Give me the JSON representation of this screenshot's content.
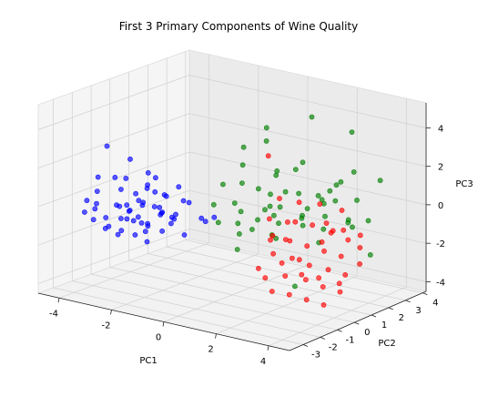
{
  "chart_data": {
    "type": "scatter3d",
    "title": "First 3 Primary Components of Wine Quality",
    "xlabel": "PC1",
    "ylabel": "PC2",
    "zlabel": "PC3",
    "xlim": [
      -4.8,
      4.8
    ],
    "ylim": [
      -3.8,
      4.2
    ],
    "zlim": [
      -4.5,
      5.3
    ],
    "xticks": [
      "-4",
      "-2",
      "0",
      "2",
      "4"
    ],
    "yticks": [
      "-3",
      "-2",
      "-1",
      "0",
      "1",
      "2",
      "3",
      "4"
    ],
    "zticks": [
      "-4",
      "-2",
      "0",
      "2",
      "4"
    ],
    "grid": true,
    "series": [
      {
        "color": "#0000ff",
        "points": [
          [
            -3.6,
            -1.8,
            2.8
          ],
          [
            -3.4,
            -2.6,
            0.8
          ],
          [
            -3.0,
            -2.2,
            1.5
          ],
          [
            -2.8,
            -2.4,
            0.2
          ],
          [
            -3.2,
            -1.6,
            0.6
          ],
          [
            -3.8,
            -2.0,
            1.2
          ],
          [
            -2.6,
            -2.0,
            -0.2
          ],
          [
            -2.4,
            -2.8,
            0.4
          ],
          [
            -2.2,
            -2.2,
            0.9
          ],
          [
            -2.0,
            -2.6,
            -0.3
          ],
          [
            -1.8,
            -2.4,
            0.5
          ],
          [
            -1.6,
            -2.0,
            1.1
          ],
          [
            -1.4,
            -2.8,
            -0.6
          ],
          [
            -1.2,
            -2.2,
            0.2
          ],
          [
            -1.0,
            -2.6,
            0.7
          ],
          [
            -3.0,
            -1.4,
            -0.5
          ],
          [
            -2.8,
            -1.2,
            0.0
          ],
          [
            -2.6,
            -1.0,
            0.8
          ],
          [
            -2.4,
            -1.6,
            -0.9
          ],
          [
            -2.2,
            -1.8,
            0.3
          ],
          [
            -2.0,
            -1.4,
            1.5
          ],
          [
            -1.8,
            -1.2,
            0.6
          ],
          [
            -1.6,
            -1.6,
            -0.1
          ],
          [
            -1.4,
            -1.4,
            -0.7
          ],
          [
            -1.2,
            -1.0,
            0.4
          ],
          [
            -3.4,
            -2.8,
            -0.6
          ],
          [
            -3.2,
            -3.0,
            0.1
          ],
          [
            -3.0,
            -3.2,
            0.5
          ],
          [
            -2.8,
            -3.0,
            -0.8
          ],
          [
            -2.6,
            -2.6,
            -1.2
          ],
          [
            -2.4,
            -2.4,
            -0.4
          ],
          [
            -2.2,
            -3.0,
            -0.1
          ],
          [
            -2.0,
            -1.8,
            1.9
          ],
          [
            -1.8,
            -2.8,
            -0.9
          ],
          [
            -1.6,
            -2.4,
            -0.4
          ],
          [
            -1.4,
            -3.2,
            0.3
          ],
          [
            -1.2,
            -3.0,
            -1.0
          ],
          [
            -1.0,
            -1.8,
            -0.2
          ],
          [
            -0.8,
            -2.2,
            0.1
          ],
          [
            -0.6,
            -1.8,
            -0.9
          ],
          [
            -3.6,
            -3.0,
            -0.2
          ],
          [
            -3.8,
            -2.6,
            0.2
          ],
          [
            -2.9,
            -2.0,
            -1.3
          ],
          [
            -2.5,
            -3.4,
            0.0
          ],
          [
            -2.1,
            -1.0,
            -0.6
          ],
          [
            -1.7,
            -3.4,
            0.9
          ],
          [
            -1.3,
            -1.8,
            0.9
          ],
          [
            -0.9,
            -2.6,
            -0.5
          ],
          [
            -1.1,
            -1.4,
            1.3
          ],
          [
            -0.5,
            -1.0,
            -0.3
          ],
          [
            -0.2,
            -1.2,
            -0.3
          ],
          [
            0.0,
            -1.0,
            -0.1
          ],
          [
            -3.3,
            -1.2,
            1.0
          ],
          [
            -2.7,
            -1.8,
            2.4
          ],
          [
            -1.9,
            -1.6,
            0.1
          ],
          [
            -1.5,
            -1.0,
            -0.4
          ],
          [
            -2.3,
            -1.4,
            -1.1
          ],
          [
            -3.1,
            -2.4,
            -1.0
          ],
          [
            -0.7,
            -1.4,
            0.6
          ],
          [
            -1.9,
            -2.0,
            1.2
          ]
        ]
      },
      {
        "color": "#008000",
        "points": [
          [
            1.0,
            0.5,
            4.3
          ],
          [
            0.8,
            -0.5,
            3.6
          ],
          [
            0.5,
            1.2,
            3.2
          ],
          [
            1.6,
            2.2,
            4.4
          ],
          [
            2.5,
            3.2,
            3.5
          ],
          [
            0.2,
            0.3,
            2.2
          ],
          [
            0.6,
            -0.3,
            1.6
          ],
          [
            1.2,
            0.8,
            2.0
          ],
          [
            1.8,
            1.4,
            2.4
          ],
          [
            2.2,
            0.6,
            1.2
          ],
          [
            2.6,
            1.8,
            1.0
          ],
          [
            3.0,
            2.6,
            1.8
          ],
          [
            3.4,
            2.2,
            0.6
          ],
          [
            0.4,
            0.9,
            0.8
          ],
          [
            0.9,
            -0.8,
            0.4
          ],
          [
            1.5,
            0.2,
            0.0
          ],
          [
            1.9,
            1.2,
            -0.4
          ],
          [
            2.4,
            2.4,
            0.2
          ],
          [
            2.9,
            1.0,
            -0.6
          ],
          [
            3.3,
            3.0,
            -0.8
          ],
          [
            0.3,
            -1.2,
            -0.2
          ],
          [
            0.7,
            -0.6,
            -0.9
          ],
          [
            1.3,
            0.6,
            -1.4
          ],
          [
            1.7,
            -0.2,
            -0.8
          ],
          [
            2.3,
            1.6,
            -1.7
          ],
          [
            2.8,
            2.8,
            -1.2
          ],
          [
            3.6,
            1.4,
            -0.2
          ],
          [
            0.1,
            0.0,
            0.3
          ],
          [
            0.6,
            1.6,
            1.3
          ],
          [
            1.1,
            2.0,
            1.6
          ],
          [
            1.4,
            1.0,
            0.9
          ],
          [
            2.0,
            2.0,
            0.5
          ],
          [
            2.5,
            0.4,
            -0.3
          ],
          [
            3.1,
            0.8,
            0.2
          ],
          [
            3.5,
            3.4,
            1.2
          ],
          [
            0.4,
            -1.6,
            0.9
          ],
          [
            0.9,
            -1.0,
            -1.5
          ],
          [
            1.6,
            0.4,
            0.4
          ],
          [
            2.1,
            -0.4,
            0.0
          ],
          [
            2.7,
            1.2,
            0.8
          ],
          [
            3.2,
            2.0,
            -0.4
          ],
          [
            3.8,
            2.4,
            -2.2
          ],
          [
            0.2,
            -0.8,
            1.6
          ],
          [
            1.0,
            0.0,
            -0.3
          ],
          [
            1.8,
            2.6,
            -0.2
          ],
          [
            2.6,
            -0.2,
            -3.2
          ],
          [
            0.5,
            0.4,
            -1.1
          ],
          [
            1.2,
            -1.4,
            0.1
          ],
          [
            2.2,
            3.0,
            0.9
          ],
          [
            3.0,
            1.6,
            1.5
          ],
          [
            0.8,
            1.0,
            0.6
          ],
          [
            1.5,
            1.8,
            -0.6
          ],
          [
            2.4,
            0.8,
            0.4
          ],
          [
            1.9,
            -0.6,
            0.9
          ],
          [
            0.3,
            1.4,
            -0.5
          ]
        ]
      },
      {
        "color": "#ff0000",
        "points": [
          [
            1.0,
            0.6,
            2.8
          ],
          [
            1.8,
            1.2,
            0.4
          ],
          [
            2.2,
            0.4,
            -0.2
          ],
          [
            2.6,
            0.8,
            -0.4
          ],
          [
            3.0,
            1.4,
            -0.8
          ],
          [
            2.4,
            -0.2,
            -0.9
          ],
          [
            2.8,
            0.2,
            -1.2
          ],
          [
            3.2,
            0.6,
            -1.5
          ],
          [
            3.6,
            1.0,
            -1.8
          ],
          [
            2.0,
            -0.6,
            -0.6
          ],
          [
            2.3,
            -1.0,
            -1.3
          ],
          [
            2.7,
            -0.5,
            -1.6
          ],
          [
            3.1,
            -0.1,
            -2.0
          ],
          [
            3.5,
            0.4,
            -2.3
          ],
          [
            3.9,
            0.8,
            -2.6
          ],
          [
            2.1,
            0.0,
            -1.0
          ],
          [
            2.5,
            -0.8,
            -1.8
          ],
          [
            2.9,
            -1.2,
            -2.2
          ],
          [
            3.3,
            -0.6,
            -2.5
          ],
          [
            3.7,
            -0.2,
            -2.9
          ],
          [
            4.1,
            0.2,
            -3.2
          ],
          [
            1.6,
            -0.2,
            0.0
          ],
          [
            1.9,
            0.4,
            -0.3
          ],
          [
            2.6,
            1.6,
            -0.6
          ],
          [
            3.0,
            2.0,
            -1.0
          ],
          [
            3.4,
            2.4,
            -1.3
          ],
          [
            3.8,
            1.8,
            -1.6
          ],
          [
            4.2,
            1.2,
            -2.1
          ],
          [
            2.2,
            1.8,
            0.2
          ],
          [
            2.8,
            2.2,
            -0.1
          ],
          [
            3.2,
            1.0,
            -0.7
          ],
          [
            3.6,
            1.4,
            -1.1
          ],
          [
            1.5,
            0.0,
            -1.2
          ],
          [
            2.0,
            -1.4,
            -2.0
          ],
          [
            2.4,
            -1.6,
            -2.3
          ],
          [
            2.8,
            -1.8,
            -2.8
          ],
          [
            3.2,
            -1.4,
            -3.0
          ],
          [
            3.6,
            -1.0,
            -3.3
          ],
          [
            4.0,
            -0.6,
            -3.6
          ],
          [
            1.3,
            0.8,
            0.6
          ],
          [
            2.5,
            0.2,
            -2.0
          ],
          [
            3.0,
            -0.4,
            -2.4
          ],
          [
            3.4,
            0.0,
            -2.6
          ],
          [
            3.8,
            0.6,
            -3.0
          ],
          [
            2.7,
            1.2,
            -1.4
          ]
        ]
      }
    ]
  }
}
